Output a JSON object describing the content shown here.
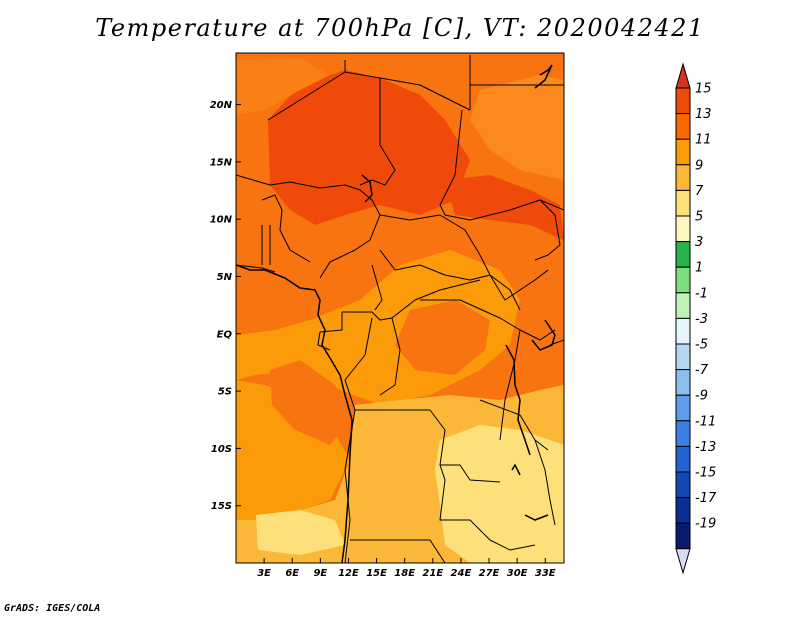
{
  "title": "Temperature at 700hPa [C], VT: 2020042421",
  "footer": "GrADS: IGES/COLA",
  "map": {
    "lon_range": [
      0,
      35
    ],
    "lat_range": [
      -20,
      24.5
    ],
    "x_ticks": [
      "3E",
      "6E",
      "9E",
      "12E",
      "15E",
      "18E",
      "21E",
      "24E",
      "27E",
      "30E",
      "33E"
    ],
    "x_tick_values": [
      3,
      6,
      9,
      12,
      15,
      18,
      21,
      24,
      27,
      30,
      33
    ],
    "y_ticks": [
      "20N",
      "15N",
      "10N",
      "5N",
      "EQ",
      "5S",
      "10S",
      "15S"
    ],
    "y_tick_values": [
      20,
      15,
      10,
      5,
      0,
      -5,
      -10,
      -15
    ]
  },
  "colorbar": {
    "labels": [
      "15",
      "13",
      "11",
      "9",
      "7",
      "5",
      "3",
      "1",
      "-1",
      "-3",
      "-5",
      "-7",
      "-9",
      "-11",
      "-13",
      "-15",
      "-17",
      "-19"
    ],
    "colors": [
      "#d7301f",
      "#f04a0a",
      "#f76a00",
      "#fb9b0a",
      "#fbb838",
      "#fde07a",
      "#fef7c0",
      "#2ab34a",
      "#7fde7c",
      "#bff0b8",
      "#e6f5fb",
      "#b4d8f0",
      "#8cc0ec",
      "#5f9cec",
      "#3d7fe6",
      "#2464d2",
      "#1448b4",
      "#0a2e92",
      "#0a1a6e",
      "#d9dcf5"
    ]
  }
}
